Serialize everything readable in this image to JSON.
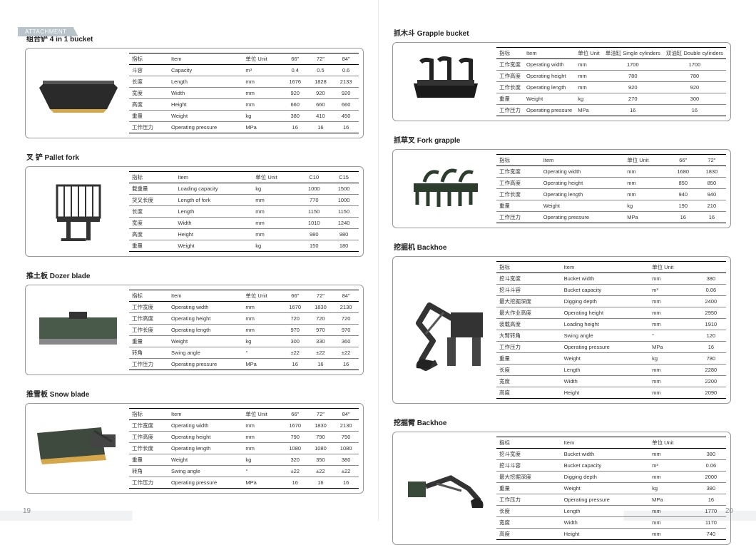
{
  "tab": "ATTACHMENT",
  "page_left": "19",
  "page_right": "20",
  "col_cn": {
    "spec": "指标",
    "item": "Item",
    "unit": "单位 Unit"
  },
  "sections": {
    "bucket4in1": {
      "title": "组合铲  4 in 1 bucket",
      "headers": [
        "指标",
        "Item",
        "单位  Unit",
        "66″",
        "72″",
        "84″"
      ],
      "rows": [
        [
          "斗容",
          "Capacity",
          "m³",
          "0.4",
          "0.5",
          "0.6"
        ],
        [
          "长度",
          "Length",
          "mm",
          "1676",
          "1828",
          "2133"
        ],
        [
          "宽度",
          "Width",
          "mm",
          "920",
          "920",
          "920"
        ],
        [
          "高度",
          "Height",
          "mm",
          "660",
          "660",
          "660"
        ],
        [
          "重量",
          "Weight",
          "kg",
          "380",
          "410",
          "450"
        ],
        [
          "工作压力",
          "Operating pressure",
          "MPa",
          "16",
          "16",
          "16"
        ]
      ]
    },
    "palletfork": {
      "title": "叉  铲  Pallet fork",
      "headers": [
        "指标",
        "Item",
        "单位  Unit",
        "C10",
        "C15"
      ],
      "rows": [
        [
          "载重量",
          "Loading capacity",
          "kg",
          "1000",
          "1500"
        ],
        [
          "货叉长度",
          "Length of fork",
          "mm",
          "770",
          "1000"
        ],
        [
          "长度",
          "Length",
          "mm",
          "1150",
          "1150"
        ],
        [
          "宽度",
          "Width",
          "mm",
          "1010",
          "1240"
        ],
        [
          "高度",
          "Height",
          "mm",
          "980",
          "980"
        ],
        [
          "重量",
          "Weight",
          "kg",
          "150",
          "180"
        ]
      ]
    },
    "dozer": {
      "title": "推土板  Dozer blade",
      "headers": [
        "指标",
        "Item",
        "单位  Unit",
        "66″",
        "72″",
        "84″"
      ],
      "rows": [
        [
          "工作宽度",
          "Operating width",
          "mm",
          "1670",
          "1830",
          "2130"
        ],
        [
          "工作高度",
          "Operating height",
          "mm",
          "720",
          "720",
          "720"
        ],
        [
          "工作长度",
          "Operating length",
          "mm",
          "970",
          "970",
          "970"
        ],
        [
          "重量",
          "Weight",
          "kg",
          "300",
          "330",
          "360"
        ],
        [
          "转角",
          "Swing angle",
          "°",
          "±22",
          "±22",
          "±22"
        ],
        [
          "工作压力",
          "Operating pressure",
          "MPa",
          "16",
          "16",
          "16"
        ]
      ]
    },
    "snow": {
      "title": "推雪板 Snow blade",
      "headers": [
        "指标",
        "Item",
        "单位 Unit",
        "66″",
        "72″",
        "84″"
      ],
      "rows": [
        [
          "工作宽度",
          "Operating width",
          "mm",
          "1670",
          "1830",
          "2130"
        ],
        [
          "工作高度",
          "Operating height",
          "mm",
          "790",
          "790",
          "790"
        ],
        [
          "工作长度",
          "Operating length",
          "mm",
          "1080",
          "1080",
          "1080"
        ],
        [
          "重量",
          "Weight",
          "kg",
          "320",
          "350",
          "380"
        ],
        [
          "转角",
          "Swing angle",
          "°",
          "±22",
          "±22",
          "±22"
        ],
        [
          "工作压力",
          "Operating pressure",
          "MPa",
          "16",
          "16",
          "16"
        ]
      ]
    },
    "grapple": {
      "title": "抓木斗  Grapple bucket",
      "headers": [
        "指标",
        "Item",
        "单位 Unit",
        "单油缸 Single cylinders",
        "双油缸 Double cylinders"
      ],
      "rows": [
        [
          "工作宽度",
          "Operating width",
          "mm",
          "1700",
          "1700"
        ],
        [
          "工作高度",
          "Operating height",
          "mm",
          "780",
          "780"
        ],
        [
          "工作长度",
          "Operating length",
          "mm",
          "920",
          "920"
        ],
        [
          "重量",
          "Weight",
          "kg",
          "270",
          "300"
        ],
        [
          "工作压力",
          "Operating pressure",
          "MPa",
          "16",
          "16"
        ]
      ]
    },
    "forkgrapple": {
      "title": "抓草叉  Fork grapple",
      "headers": [
        "指标",
        "Item",
        "单位  Unit",
        "66″",
        "72″"
      ],
      "rows": [
        [
          "工作宽度",
          "Operating width",
          "mm",
          "1680",
          "1830"
        ],
        [
          "工作高度",
          "Operating height",
          "mm",
          "850",
          "850"
        ],
        [
          "工作长度",
          "Operating length",
          "mm",
          "940",
          "940"
        ],
        [
          "重量",
          "Weight",
          "kg",
          "190",
          "210"
        ],
        [
          "工作压力",
          "Operating pressure",
          "MPa",
          "16",
          "16"
        ]
      ]
    },
    "backhoe1": {
      "title": "挖掘机  Backhoe",
      "headers": [
        "指标",
        "Item",
        "单位  Unit",
        ""
      ],
      "rows": [
        [
          "挖斗宽度",
          "Bucket width",
          "mm",
          "380"
        ],
        [
          "挖斗斗容",
          "Bucket capacity",
          "m³",
          "0.06"
        ],
        [
          "最大挖掘深度",
          "Digging depth",
          "mm",
          "2400"
        ],
        [
          "最大作业高度",
          "Operating height",
          "mm",
          "2950"
        ],
        [
          "装载高度",
          "Loading height",
          "mm",
          "1910"
        ],
        [
          "大臂转角",
          "Swing angle",
          "°",
          "120"
        ],
        [
          "工作压力",
          "Operating pressure",
          "MPa",
          "16"
        ],
        [
          "重量",
          "Weight",
          "kg",
          "780"
        ],
        [
          "长度",
          "Length",
          "mm",
          "2280"
        ],
        [
          "宽度",
          "Width",
          "mm",
          "2200"
        ],
        [
          "高度",
          "Height",
          "mm",
          "2090"
        ]
      ]
    },
    "backhoe2": {
      "title": "挖掘臂  Backhoe",
      "headers": [
        "指标",
        "Item",
        "单位  Unit",
        ""
      ],
      "rows": [
        [
          "挖斗宽度",
          "Bucket width",
          "mm",
          "380"
        ],
        [
          "挖斗斗容",
          "Bucket capacity",
          "m³",
          "0.06"
        ],
        [
          "最大挖掘深度",
          "Digging depth",
          "mm",
          "2000"
        ],
        [
          "重量",
          "Weight",
          "kg",
          "380"
        ],
        [
          "工作压力",
          "Operating pressure",
          "MPa",
          "16"
        ],
        [
          "长度",
          "Length",
          "mm",
          "1770"
        ],
        [
          "宽度",
          "Width",
          "mm",
          "1170"
        ],
        [
          "高度",
          "Height",
          "mm",
          "740"
        ]
      ]
    }
  },
  "img_colors": {
    "bucket": "#2a2a2a",
    "fork": "#3a3a3a",
    "dozer": "#4a5a4a",
    "snow": "#3d4a3d",
    "grapple": "#1a1a1a",
    "forkgrapple": "#2d3d2d",
    "backhoe": "#333"
  }
}
